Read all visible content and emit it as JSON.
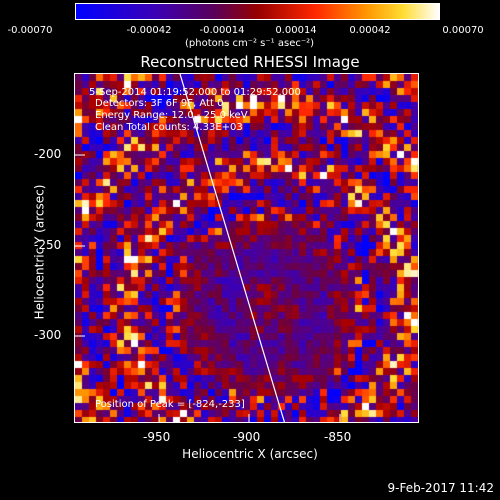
{
  "colorbar": {
    "ticks": [
      "-0.00070",
      "-0.00042",
      "-0.00014",
      "0.00014",
      "0.00042",
      "0.00070"
    ],
    "units": "(photons cm⁻² s⁻¹ asec⁻²)"
  },
  "title": "Reconstructed RHESSI Image",
  "info": {
    "line1": "5-Sep-2014 01:19:52.000 to 01:29:52.000",
    "line2": "Detectors: 3F 6F 9F, Att 0",
    "line3": "Energy Range: 12.0 - 25.0 keV",
    "line4": "Clean     Total counts: 4.33E+03",
    "peak": "Position of Peak = [-824,-233]"
  },
  "axes": {
    "xlabel": "Heliocentric X (arcsec)",
    "ylabel": "Heliocentric Y (arcsec)",
    "xticks": [
      "-950",
      "-900",
      "-850"
    ],
    "yticks": [
      "-200",
      "-250",
      "-300"
    ]
  },
  "footer": "9-Feb-2017 11:42",
  "colors": {
    "background": "#000000",
    "frame": "#ffffff"
  }
}
